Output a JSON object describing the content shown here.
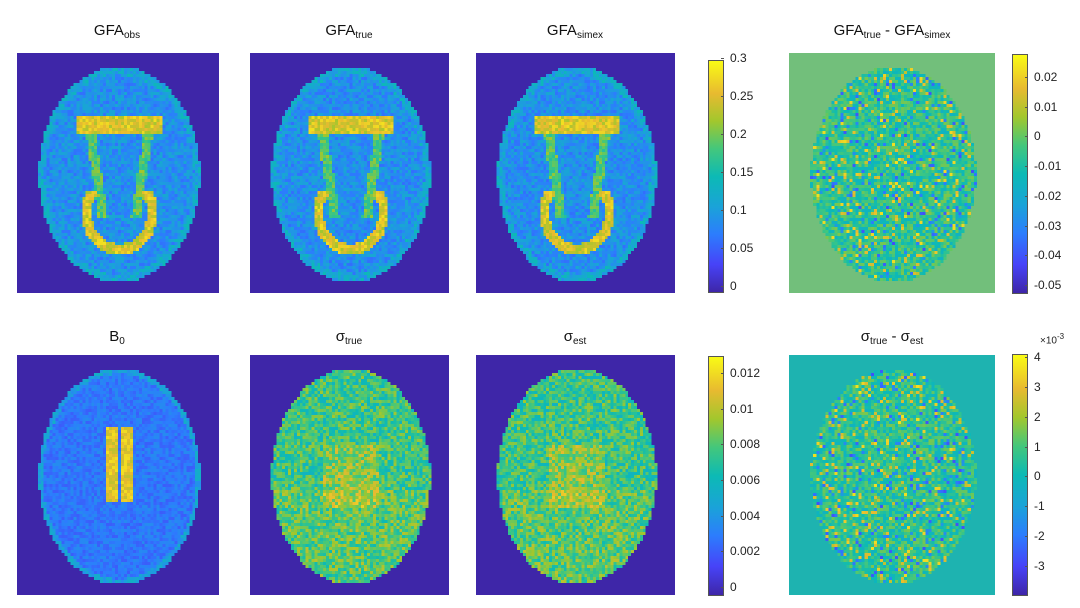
{
  "colors": {
    "background_navy": "#3e26a8",
    "colormap": [
      "#3e26a8",
      "#4743f8",
      "#2c7dfd",
      "#1aa3d8",
      "#0cbab5",
      "#43c77c",
      "#a2c72d",
      "#e8ba30",
      "#f9fb15"
    ],
    "diff_top_background": "#72bf7b",
    "diff_bottom_background": "#1eb3b0"
  },
  "top_row": {
    "panels": [
      {
        "base": "GFA",
        "sub": "obs"
      },
      {
        "base": "GFA",
        "sub": "true"
      },
      {
        "base": "GFA",
        "sub": "simex"
      }
    ],
    "colorbar_ticks": [
      "0.3",
      "0.25",
      "0.2",
      "0.15",
      "0.1",
      "0.05",
      "0"
    ],
    "diff_title": {
      "a_base": "GFA",
      "a_sub": "true",
      "sep": " - ",
      "b_base": "GFA",
      "b_sub": "simex"
    },
    "diff_colorbar_ticks": [
      "0.02",
      "0.01",
      "0",
      "-0.01",
      "-0.02",
      "-0.03",
      "-0.04",
      "-0.05"
    ]
  },
  "bottom_row": {
    "panels": [
      {
        "base": "B",
        "sub": "0"
      },
      {
        "base": "σ",
        "sub": "true"
      },
      {
        "base": "σ",
        "sub": "est"
      }
    ],
    "colorbar_ticks": [
      "0.012",
      "0.01",
      "0.008",
      "0.006",
      "0.004",
      "0.002",
      "0"
    ],
    "diff_title": {
      "a_base": "σ",
      "a_sub": "true",
      "sep": " - ",
      "b_base": "σ",
      "b_sub": "est"
    },
    "diff_colorbar_ticks": [
      "4",
      "3",
      "2",
      "1",
      "0",
      "-1",
      "-2",
      "-3"
    ],
    "diff_exponent": {
      "base": "×10",
      "power": "-3"
    }
  }
}
